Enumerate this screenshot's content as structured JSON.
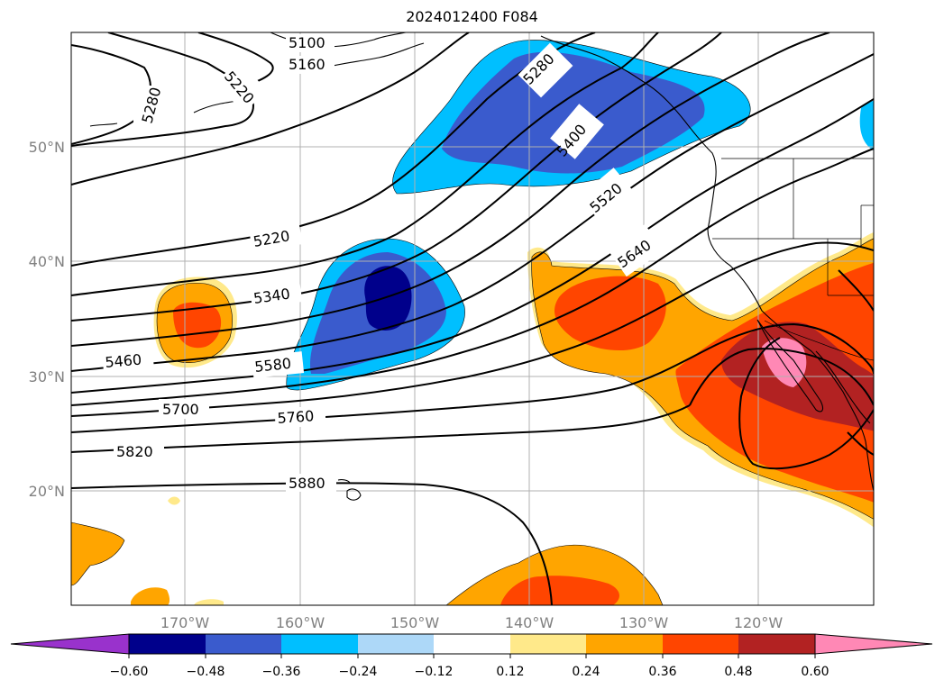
{
  "title": "2024012400 F084",
  "map": {
    "lat_labels": [
      "50°N",
      "40°N",
      "30°N",
      "20°N"
    ],
    "lon_labels": [
      "170°W",
      "160°W",
      "150°W",
      "140°W",
      "130°W",
      "120°W"
    ],
    "contour_labels": [
      "5100",
      "5160",
      "5280",
      "5220",
      "5280",
      "5400",
      "5520",
      "5640",
      "5220",
      "5340",
      "5460",
      "5580",
      "5700",
      "5760",
      "5820",
      "5880"
    ]
  },
  "colorbar": {
    "ticks": [
      "−0.60",
      "−0.48",
      "−0.36",
      "−0.24",
      "−0.12",
      "0.12",
      "0.24",
      "0.36",
      "0.48",
      "0.60"
    ],
    "colors": [
      "#9932cc",
      "#00008b",
      "#3a5bcd",
      "#00bfff",
      "#add8f8",
      "#ffffff",
      "#ffe98a",
      "#ffa500",
      "#ff4500",
      "#b22222",
      "#ff88b5"
    ]
  },
  "colors": {
    "land_lines": "#000000",
    "grid": "#b0b0b0",
    "contour": "#000000"
  }
}
